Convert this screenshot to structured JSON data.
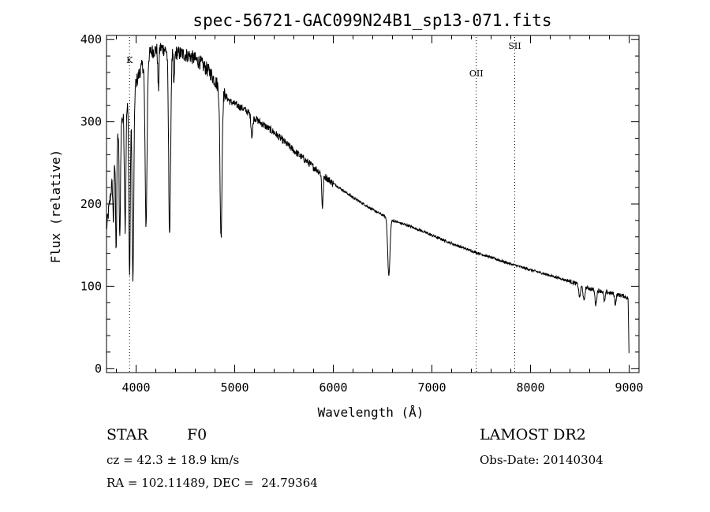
{
  "chart_data": {
    "type": "line",
    "title": "spec-56721-GAC099N24B1_sp13-071.fits",
    "xlabel": "Wavelength (Å)",
    "ylabel": "Flux (relative)",
    "xlim": [
      3700,
      9100
    ],
    "ylim": [
      -5,
      405
    ],
    "x_ticks": [
      4000,
      5000,
      6000,
      7000,
      8000,
      9000
    ],
    "y_ticks": [
      0,
      100,
      200,
      300,
      400
    ],
    "grid": false,
    "line_markers": [
      {
        "label": "K",
        "x": 3934
      },
      {
        "label": "OII",
        "x": 7450
      },
      {
        "label": "SII",
        "x": 7840
      }
    ],
    "continuum": [
      [
        3700,
        170
      ],
      [
        3760,
        230
      ],
      [
        3820,
        290
      ],
      [
        3880,
        310
      ],
      [
        3950,
        330
      ],
      [
        4050,
        365
      ],
      [
        4150,
        385
      ],
      [
        4250,
        390
      ],
      [
        4350,
        385
      ],
      [
        4450,
        383
      ],
      [
        4550,
        380
      ],
      [
        4650,
        372
      ],
      [
        4750,
        360
      ],
      [
        4850,
        340
      ],
      [
        4950,
        325
      ],
      [
        5100,
        315
      ],
      [
        5250,
        300
      ],
      [
        5400,
        287
      ],
      [
        5600,
        265
      ],
      [
        5800,
        245
      ],
      [
        6000,
        225
      ],
      [
        6200,
        208
      ],
      [
        6400,
        193
      ],
      [
        6600,
        180
      ],
      [
        6800,
        172
      ],
      [
        7000,
        162
      ],
      [
        7200,
        152
      ],
      [
        7400,
        143
      ],
      [
        7600,
        135
      ],
      [
        7800,
        127
      ],
      [
        8000,
        120
      ],
      [
        8200,
        113
      ],
      [
        8400,
        106
      ],
      [
        8600,
        97
      ],
      [
        8800,
        92
      ],
      [
        8950,
        88
      ],
      [
        8990,
        85
      ],
      [
        9000,
        0
      ]
    ],
    "absorption_lines": [
      {
        "x": 3770,
        "depth": 60,
        "width": 8
      },
      {
        "x": 3798,
        "depth": 120,
        "width": 8
      },
      {
        "x": 3835,
        "depth": 140,
        "width": 9
      },
      {
        "x": 3889,
        "depth": 140,
        "width": 10
      },
      {
        "x": 3934,
        "depth": 215,
        "width": 10
      },
      {
        "x": 3968,
        "depth": 230,
        "width": 12
      },
      {
        "x": 4101,
        "depth": 200,
        "width": 14
      },
      {
        "x": 4226,
        "depth": 50,
        "width": 8
      },
      {
        "x": 4340,
        "depth": 220,
        "width": 14
      },
      {
        "x": 4384,
        "depth": 40,
        "width": 8
      },
      {
        "x": 4861,
        "depth": 178,
        "width": 14
      },
      {
        "x": 5175,
        "depth": 25,
        "width": 12
      },
      {
        "x": 5890,
        "depth": 40,
        "width": 10
      },
      {
        "x": 6563,
        "depth": 70,
        "width": 16
      },
      {
        "x": 8498,
        "depth": 15,
        "width": 12
      },
      {
        "x": 8542,
        "depth": 18,
        "width": 12
      },
      {
        "x": 8662,
        "depth": 18,
        "width": 12
      },
      {
        "x": 8750,
        "depth": 12,
        "width": 10
      },
      {
        "x": 8860,
        "depth": 12,
        "width": 10
      }
    ]
  },
  "info": {
    "object_class": "STAR",
    "subclass": "F0",
    "survey": "LAMOST DR2",
    "cz": "cz = 42.3 ± 18.9 km/s",
    "obs_date": "Obs-Date: 20140304",
    "coords": "RA = 102.11489, DEC =  24.79364"
  },
  "colors": {
    "line": "#000000",
    "background": "#ffffff"
  }
}
